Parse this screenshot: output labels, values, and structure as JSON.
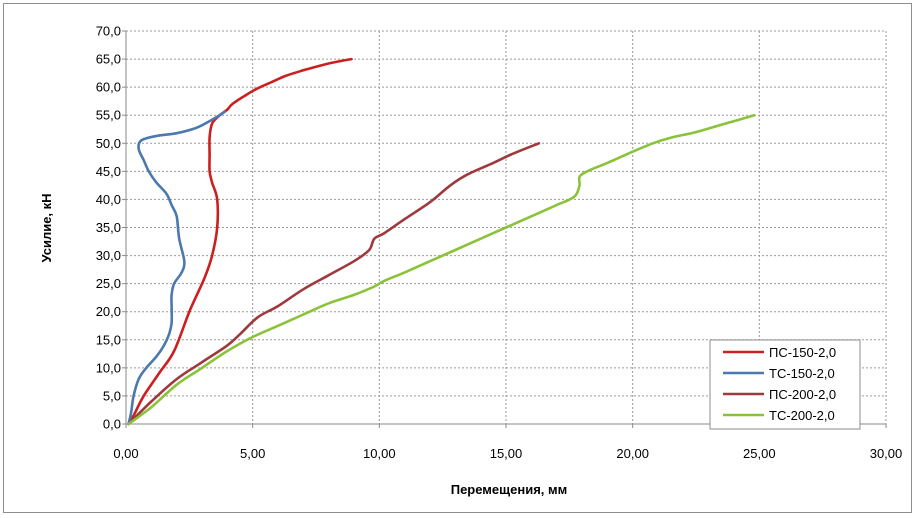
{
  "chart_data": {
    "type": "line",
    "xlabel": "Перемещения, мм",
    "ylabel": "Усилие, кН",
    "xlim": [
      0,
      30
    ],
    "ylim": [
      0,
      70
    ],
    "x_ticks": [
      "0,00",
      "5,00",
      "10,00",
      "15,00",
      "20,00",
      "25,00",
      "30,00"
    ],
    "y_ticks": [
      "0,0",
      "5,0",
      "10,0",
      "15,0",
      "20,0",
      "25,0",
      "30,0",
      "35,0",
      "40,0",
      "45,0",
      "50,0",
      "55,0",
      "60,0",
      "65,0",
      "70,0"
    ],
    "grid": true,
    "legend_position": "bottom-right",
    "series": [
      {
        "name": "ПС-150-2,0",
        "color": "#cc1f1f",
        "points": [
          [
            0.1,
            0
          ],
          [
            0.3,
            1.5
          ],
          [
            0.7,
            5
          ],
          [
            1.3,
            9
          ],
          [
            1.9,
            13
          ],
          [
            2.5,
            20
          ],
          [
            3.1,
            26
          ],
          [
            3.4,
            30
          ],
          [
            3.6,
            35
          ],
          [
            3.6,
            40
          ],
          [
            3.4,
            43
          ],
          [
            3.3,
            45
          ],
          [
            3.3,
            48
          ],
          [
            3.3,
            51
          ],
          [
            3.4,
            53.5
          ],
          [
            3.7,
            55
          ],
          [
            4.0,
            56
          ],
          [
            4.2,
            57
          ],
          [
            4.7,
            58.5
          ],
          [
            5.2,
            59.8
          ],
          [
            5.8,
            61
          ],
          [
            6.3,
            62
          ],
          [
            7.0,
            63
          ],
          [
            7.8,
            64
          ],
          [
            8.3,
            64.5
          ],
          [
            8.9,
            65
          ]
        ]
      },
      {
        "name": "ТС-150-2,0",
        "color": "#4b79ad",
        "points": [
          [
            0.1,
            0
          ],
          [
            0.2,
            2
          ],
          [
            0.3,
            5
          ],
          [
            0.5,
            8
          ],
          [
            0.8,
            10
          ],
          [
            1.2,
            12
          ],
          [
            1.5,
            14
          ],
          [
            1.7,
            16
          ],
          [
            1.8,
            18
          ],
          [
            1.8,
            21
          ],
          [
            1.8,
            23
          ],
          [
            1.9,
            25
          ],
          [
            2.2,
            27
          ],
          [
            2.3,
            29
          ],
          [
            2.1,
            33
          ],
          [
            2.0,
            37
          ],
          [
            1.8,
            39
          ],
          [
            1.6,
            41
          ],
          [
            1.2,
            43
          ],
          [
            0.9,
            45
          ],
          [
            0.7,
            47
          ],
          [
            0.5,
            49
          ],
          [
            0.6,
            50.5
          ],
          [
            1.2,
            51.3
          ],
          [
            2.0,
            51.8
          ],
          [
            2.8,
            52.8
          ],
          [
            3.4,
            54.2
          ],
          [
            3.9,
            55.6
          ]
        ]
      },
      {
        "name": "ПС-200-2,0",
        "color": "#9e3a3e",
        "points": [
          [
            0.1,
            0
          ],
          [
            1.0,
            4
          ],
          [
            2.0,
            8
          ],
          [
            3.0,
            11
          ],
          [
            4.0,
            14
          ],
          [
            4.5,
            16
          ],
          [
            5.2,
            19
          ],
          [
            6.0,
            21
          ],
          [
            7.0,
            24
          ],
          [
            8.0,
            26.5
          ],
          [
            9.0,
            29
          ],
          [
            9.6,
            31
          ],
          [
            9.8,
            33
          ],
          [
            10.2,
            34
          ],
          [
            11.0,
            36.5
          ],
          [
            12.0,
            39.5
          ],
          [
            12.8,
            42.5
          ],
          [
            13.5,
            44.5
          ],
          [
            14.5,
            46.5
          ],
          [
            15.2,
            48
          ],
          [
            16.3,
            50
          ]
        ]
      },
      {
        "name": "ТС-200-2,0",
        "color": "#8ac33a",
        "points": [
          [
            0.1,
            0
          ],
          [
            1.0,
            3
          ],
          [
            2.0,
            7
          ],
          [
            3.0,
            10
          ],
          [
            4.0,
            13
          ],
          [
            5.0,
            15.5
          ],
          [
            6.0,
            17.5
          ],
          [
            7.0,
            19.5
          ],
          [
            8.0,
            21.5
          ],
          [
            9.0,
            23
          ],
          [
            9.8,
            24.5
          ],
          [
            10.2,
            25.5
          ],
          [
            11.0,
            27
          ],
          [
            12.0,
            29
          ],
          [
            13.0,
            31
          ],
          [
            14.0,
            33
          ],
          [
            15.0,
            35
          ],
          [
            16.0,
            37
          ],
          [
            17.0,
            39
          ],
          [
            17.7,
            40.5
          ],
          [
            17.9,
            42.5
          ],
          [
            17.9,
            44
          ],
          [
            18.2,
            45
          ],
          [
            19.0,
            46.5
          ],
          [
            20.0,
            48.5
          ],
          [
            20.8,
            50
          ],
          [
            21.5,
            51
          ],
          [
            22.5,
            52
          ],
          [
            23.5,
            53.3
          ],
          [
            24.8,
            55
          ]
        ]
      }
    ]
  }
}
